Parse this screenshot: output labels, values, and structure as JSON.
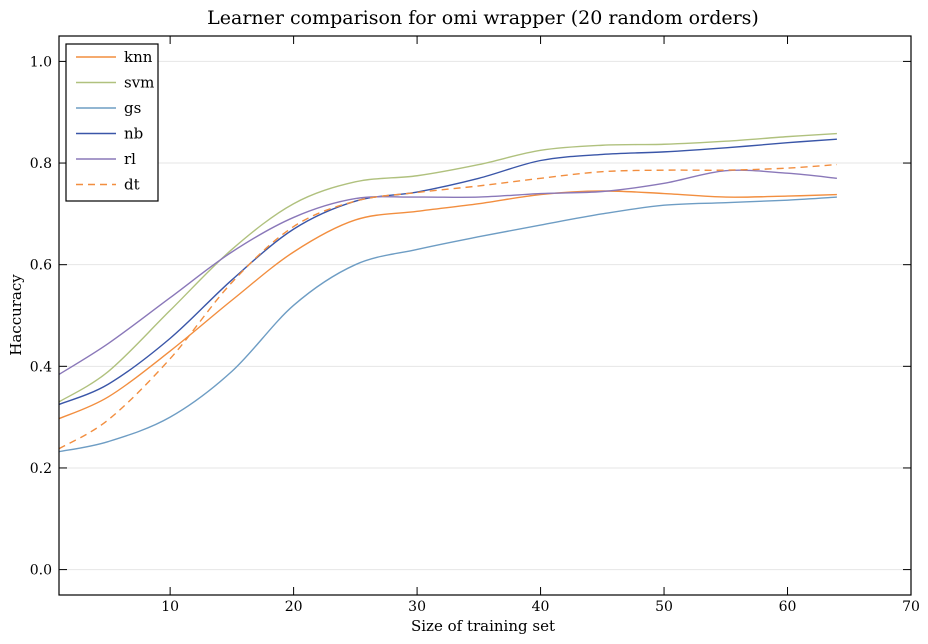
{
  "chart_data": {
    "type": "line",
    "title": "Learner comparison for omi wrapper (20 random orders)",
    "xlabel": "Size of training set",
    "ylabel": "Haccuracy",
    "xlim": [
      1,
      70
    ],
    "ylim": [
      -0.05,
      1.05
    ],
    "xticks": [
      10,
      20,
      30,
      40,
      50,
      60,
      70
    ],
    "yticks": [
      0.0,
      0.2,
      0.4,
      0.6,
      0.8,
      1.0
    ],
    "grid": "horizontal",
    "legend_position": "top-left",
    "series": [
      {
        "name": "knn",
        "color": "#f28e3f",
        "dash": "solid",
        "x": [
          1,
          5,
          10,
          15,
          20,
          25,
          30,
          35,
          40,
          45,
          50,
          55,
          60,
          64
        ],
        "y": [
          0.297,
          0.34,
          0.43,
          0.53,
          0.625,
          0.688,
          0.705,
          0.72,
          0.738,
          0.745,
          0.74,
          0.733,
          0.735,
          0.738
        ]
      },
      {
        "name": "svm",
        "color": "#b0c17e",
        "dash": "solid",
        "x": [
          1,
          5,
          10,
          15,
          20,
          25,
          30,
          35,
          40,
          45,
          50,
          55,
          60,
          64
        ],
        "y": [
          0.33,
          0.39,
          0.51,
          0.63,
          0.72,
          0.763,
          0.775,
          0.797,
          0.825,
          0.835,
          0.837,
          0.843,
          0.852,
          0.858
        ]
      },
      {
        "name": "gs",
        "color": "#6e9dc4",
        "dash": "solid",
        "x": [
          1,
          5,
          10,
          15,
          20,
          25,
          30,
          35,
          40,
          45,
          50,
          55,
          60,
          64
        ],
        "y": [
          0.232,
          0.252,
          0.3,
          0.39,
          0.52,
          0.6,
          0.63,
          0.655,
          0.678,
          0.7,
          0.717,
          0.722,
          0.727,
          0.733
        ]
      },
      {
        "name": "nb",
        "color": "#3a56a8",
        "dash": "solid",
        "x": [
          1,
          5,
          10,
          15,
          20,
          25,
          30,
          35,
          40,
          45,
          50,
          55,
          60,
          64
        ],
        "y": [
          0.325,
          0.365,
          0.455,
          0.57,
          0.67,
          0.725,
          0.743,
          0.77,
          0.805,
          0.817,
          0.822,
          0.83,
          0.84,
          0.847
        ]
      },
      {
        "name": "rl",
        "color": "#8a78b9",
        "dash": "solid",
        "x": [
          1,
          5,
          10,
          15,
          20,
          25,
          30,
          35,
          40,
          45,
          50,
          55,
          60,
          64
        ],
        "y": [
          0.384,
          0.445,
          0.535,
          0.625,
          0.693,
          0.73,
          0.733,
          0.733,
          0.74,
          0.744,
          0.76,
          0.785,
          0.78,
          0.77
        ]
      },
      {
        "name": "dt",
        "color": "#f28e3f",
        "dash": "dashed",
        "x": [
          1,
          5,
          10,
          15,
          20,
          25,
          30,
          35,
          40,
          45,
          50,
          55,
          60,
          64
        ],
        "y": [
          0.238,
          0.295,
          0.415,
          0.565,
          0.675,
          0.725,
          0.742,
          0.755,
          0.77,
          0.783,
          0.786,
          0.786,
          0.79,
          0.797
        ]
      }
    ]
  }
}
